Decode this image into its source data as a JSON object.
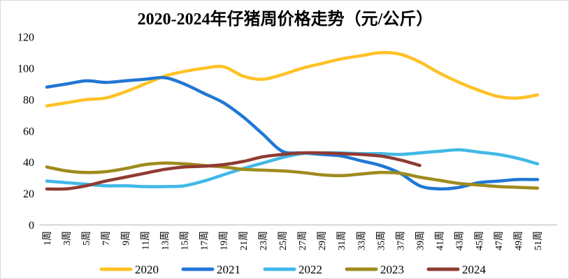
{
  "title": "2020-2024年仔猪周价格走势（元/公斤）",
  "chart_data": {
    "type": "line",
    "title": "2020-2024年仔猪周价格走势（元/公斤）",
    "unit": "元/公斤",
    "grid": false,
    "legend_position": "bottom",
    "ylim": [
      0,
      120
    ],
    "y_ticks": [
      0,
      20,
      40,
      60,
      80,
      100,
      120
    ],
    "axis_color": "#c9c9c9",
    "categories": [
      "1周",
      "3周",
      "5周",
      "7周",
      "9周",
      "11周",
      "13周",
      "15周",
      "17周",
      "19周",
      "21周",
      "23周",
      "25周",
      "27周",
      "29周",
      "31周",
      "33周",
      "35周",
      "37周",
      "39周",
      "41周",
      "43周",
      "45周",
      "47周",
      "49周",
      "51周"
    ],
    "series": [
      {
        "name": "2020",
        "color": "#FFC125",
        "values": [
          76,
          78,
          80,
          81,
          85,
          90,
          95,
          98,
          100,
          101,
          95,
          93,
          96,
          100,
          103,
          106,
          108,
          110,
          109,
          104,
          97,
          91,
          86,
          82,
          81,
          83
        ]
      },
      {
        "name": "2021",
        "color": "#2077D4",
        "values": [
          88,
          90,
          92,
          91,
          92,
          93,
          94,
          90,
          84,
          78,
          69,
          58,
          47,
          46,
          45,
          44,
          41,
          38,
          33,
          25,
          23,
          24,
          27,
          28,
          29,
          29
        ]
      },
      {
        "name": "2022",
        "color": "#41B9E6",
        "values": [
          28,
          27,
          26,
          25,
          25,
          24.5,
          24.5,
          25,
          28,
          32,
          36,
          39.5,
          43,
          45.5,
          46,
          46,
          45.5,
          45.5,
          45,
          46,
          47,
          48,
          46.5,
          45,
          42.5,
          39
        ]
      },
      {
        "name": "2023",
        "color": "#9E8B1E",
        "values": [
          37,
          34.5,
          33.5,
          34,
          36,
          38.5,
          39.5,
          39,
          38,
          37,
          35.5,
          35,
          34.5,
          33.5,
          32,
          31.5,
          32.5,
          33.5,
          33,
          30.5,
          28.5,
          26.5,
          25.5,
          24.5,
          24,
          23.5
        ]
      },
      {
        "name": "2024",
        "color": "#8F3B33",
        "values": [
          23,
          23,
          25,
          28,
          30.5,
          33,
          35.5,
          37,
          37.5,
          38.5,
          40.5,
          43.5,
          45,
          46,
          46,
          45.5,
          45,
          44,
          41.5,
          38,
          null,
          null,
          null,
          null,
          null,
          null
        ]
      }
    ]
  }
}
